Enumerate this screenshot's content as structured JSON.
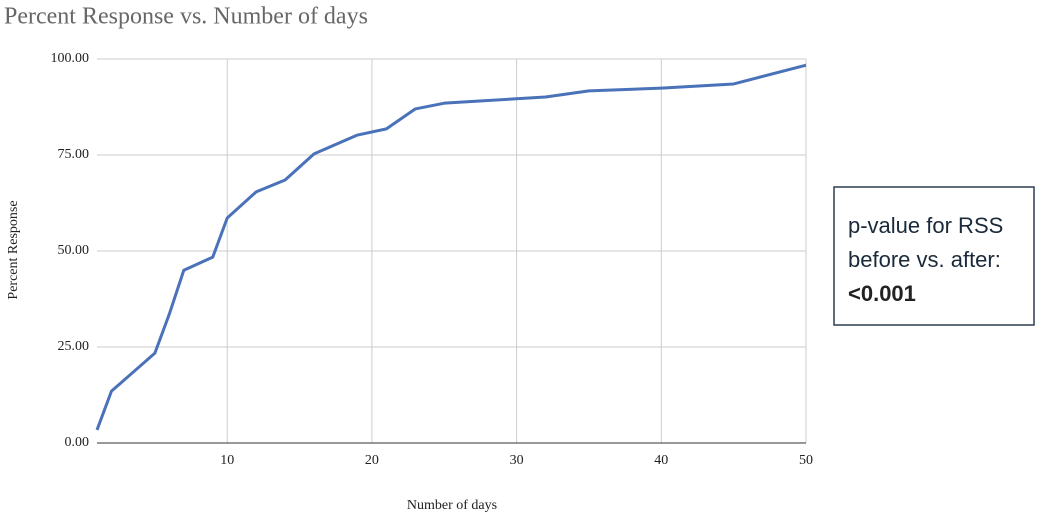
{
  "chart_data": {
    "type": "line",
    "title": "Percent Response vs. Number of days",
    "x_label": "Number of days",
    "y_label": "Percent Response",
    "x": [
      1,
      2,
      5,
      6,
      7,
      9,
      10,
      12,
      14,
      16,
      19,
      21,
      23,
      25,
      32,
      35,
      40,
      45,
      50
    ],
    "series": [
      {
        "name": "Percent Response",
        "color": "#4a72b8",
        "values": [
          3.4,
          13.5,
          23.4,
          33.6,
          45,
          48.4,
          58.6,
          65.4,
          68.5,
          75.3,
          80.2,
          81.8,
          87,
          88.5,
          90.1,
          91.7,
          92.4,
          93.5,
          98.4
        ]
      }
    ],
    "xlim": [
      1,
      50
    ],
    "xticks": [
      10,
      20,
      30,
      40,
      50
    ],
    "ylim": [
      0,
      100
    ],
    "yticks": [
      {
        "value": 0,
        "label": "0.00"
      },
      {
        "value": 25,
        "label": "25.00"
      },
      {
        "value": 50,
        "label": "50.00"
      },
      {
        "value": 75,
        "label": "75.00"
      },
      {
        "value": 100,
        "label": "100.00"
      }
    ],
    "grid": true,
    "annotation": {
      "lines": [
        "p-value for RSS",
        "before vs. after:"
      ],
      "highlight": "<0.001",
      "highlight_color": "#d9121b"
    }
  }
}
